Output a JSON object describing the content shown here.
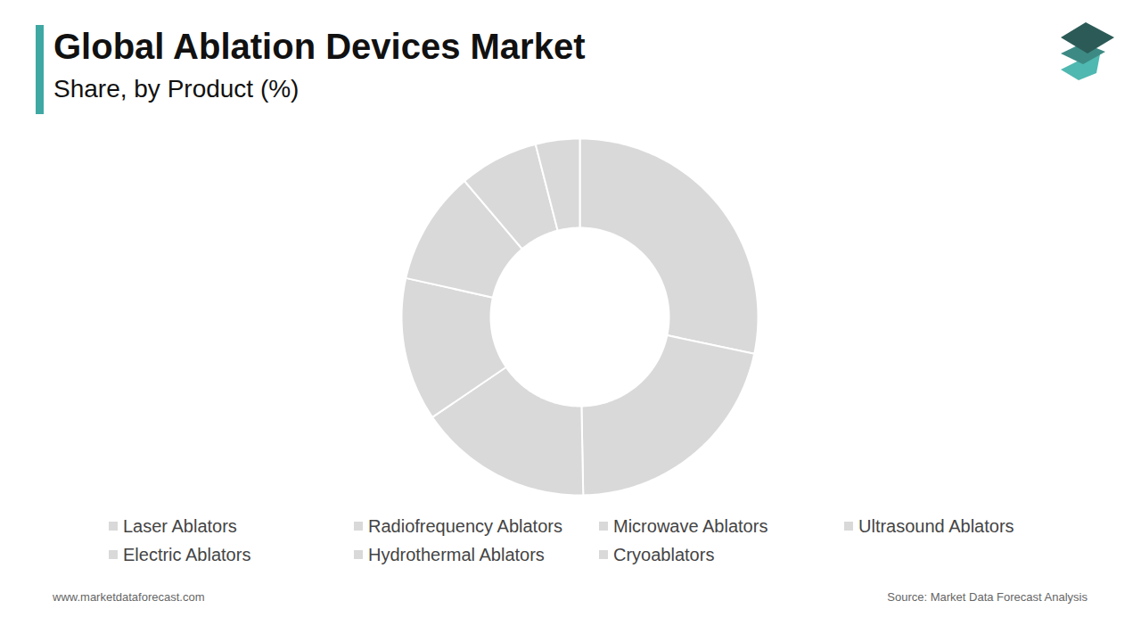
{
  "chart_data": {
    "type": "donut",
    "title": "Global Ablation Devices Market",
    "subtitle": "Share, by Product (%)",
    "categories": [
      "Laser Ablators",
      "Radiofrequency Ablators",
      "Microwave Ablators",
      "Ultrasound Ablators",
      "Electric Ablators",
      "Hydrothermal Ablators",
      "Cryoablators"
    ],
    "values": [
      28.3,
      21.4,
      15.8,
      13,
      10.3,
      7.2,
      4
    ],
    "color": "#d9d9d9",
    "legend": "bottom",
    "annotations": [
      "www.marketdataforecast.com",
      "Source: Market Data Forecast Analysis"
    ]
  }
}
